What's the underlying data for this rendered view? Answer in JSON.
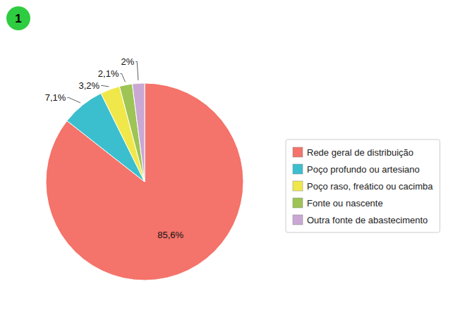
{
  "chart_data": {
    "type": "pie",
    "categories": [
      "Rede geral de distribuição",
      "Poço profundo ou artesiano",
      "Poço raso, freático ou cacimba",
      "Fonte ou nascente",
      "Outra fonte de abastecimento"
    ],
    "values": [
      85.6,
      7.1,
      3.2,
      2.1,
      2.0
    ],
    "value_labels": [
      "85,6%",
      "7,1%",
      "3,2%",
      "2,1%",
      "2%"
    ],
    "colors": [
      "#F4736A",
      "#3BBFCE",
      "#F0E84A",
      "#9DC455",
      "#C9A8D4"
    ],
    "data_labels": true,
    "legend": "right",
    "annotations": [
      "1"
    ]
  }
}
